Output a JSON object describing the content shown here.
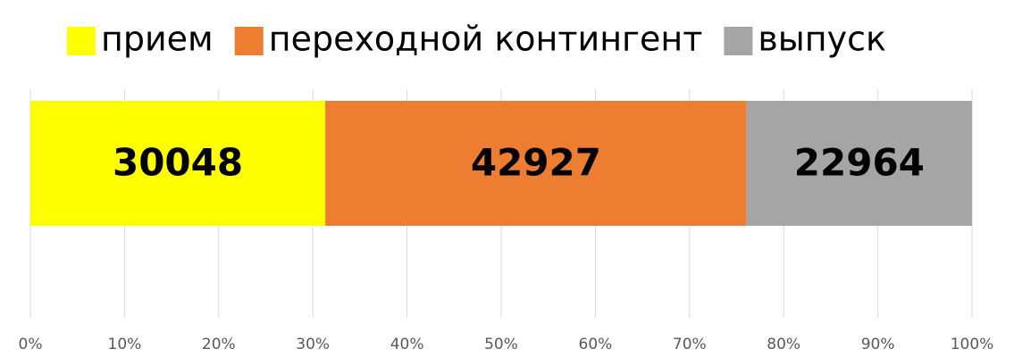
{
  "chart_data": {
    "type": "bar",
    "orientation": "horizontal",
    "stack": "percent",
    "series": [
      {
        "name": "прием",
        "color": "#ffff00",
        "values": [
          30048
        ]
      },
      {
        "name": "переходной контингент",
        "color": "#ed7d31",
        "values": [
          42927
        ]
      },
      {
        "name": "выпуск",
        "color": "#a5a5a5",
        "values": [
          22964
        ]
      }
    ],
    "xlim": [
      0,
      100
    ],
    "xticks": [
      {
        "value": 0,
        "label": "0%"
      },
      {
        "value": 10,
        "label": "10%"
      },
      {
        "value": 20,
        "label": "20%"
      },
      {
        "value": 30,
        "label": "30%"
      },
      {
        "value": 40,
        "label": "40%"
      },
      {
        "value": 50,
        "label": "50%"
      },
      {
        "value": 60,
        "label": "60%"
      },
      {
        "value": 70,
        "label": "70%"
      },
      {
        "value": 80,
        "label": "80%"
      },
      {
        "value": 90,
        "label": "90%"
      },
      {
        "value": 100,
        "label": "100%"
      }
    ],
    "grid": true,
    "legend": "top"
  }
}
